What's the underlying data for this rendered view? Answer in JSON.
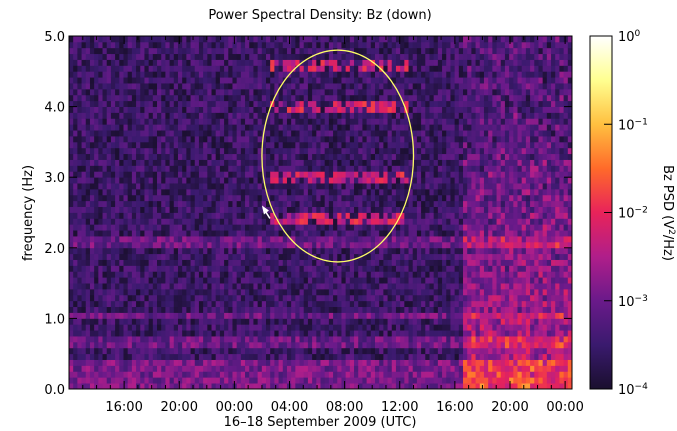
{
  "chart_data": {
    "type": "heatmap",
    "title": "Power Spectral Density: Bz (down)",
    "xlabel": "16–18 September 2009 (UTC)",
    "ylabel": "frequency (Hz)",
    "ylim": [
      0.0,
      5.0
    ],
    "y_ticks": [
      "0.0",
      "1.0",
      "2.0",
      "3.0",
      "4.0",
      "5.0"
    ],
    "x_tick_labels": [
      "16:00",
      "20:00",
      "00:00",
      "04:00",
      "08:00",
      "12:00",
      "16:00",
      "20:00",
      "00:00"
    ],
    "x_tick_hours": [
      16,
      20,
      24,
      28,
      32,
      36,
      40,
      44,
      48
    ],
    "xlim_hours": [
      12.0,
      48.5
    ],
    "colorbar": {
      "label_main": "Bz PSD (V",
      "label_sup": "2",
      "label_end": "/Hz)",
      "scale": "log",
      "range": [
        0.0001,
        1
      ],
      "ticks": [
        {
          "base": "10",
          "exp": "0",
          "value": 1
        },
        {
          "base": "10",
          "exp": "−1",
          "value": 0.1
        },
        {
          "base": "10",
          "exp": "−2",
          "value": 0.01
        },
        {
          "base": "10",
          "exp": "−3",
          "value": 0.001
        },
        {
          "base": "10",
          "exp": "−4",
          "value": 0.0001
        }
      ],
      "colors": [
        "#1a0f2e",
        "#3a1a6e",
        "#6a1a8a",
        "#b01e8a",
        "#e8235a",
        "#ff6a2a",
        "#ffc040",
        "#ffff90",
        "#ffffff"
      ]
    },
    "features": {
      "background_level": 0.0003,
      "pc1_bands_hz": [
        2.4,
        3.0,
        4.0,
        4.6
      ],
      "pc1_interval_hours": [
        26.5,
        36.5
      ],
      "broadband_intervals_hours": [
        [
          40.5,
          48.5
        ]
      ],
      "line_frequencies_hz": [
        0.65,
        1.05,
        2.1
      ],
      "highlight_ellipse": {
        "center_hours": 31.5,
        "center_hz": 3.3,
        "half_width_hours": 5.5,
        "half_height_hz": 1.5,
        "color": "#ffff66"
      },
      "arrow_color": "#ffffff"
    }
  }
}
